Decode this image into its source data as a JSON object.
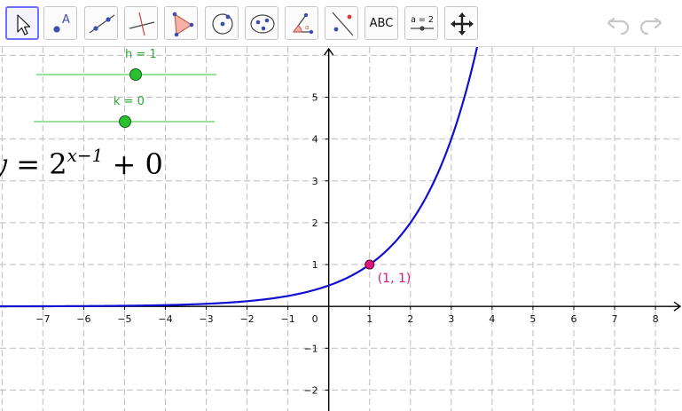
{
  "toolbar": {
    "tools": [
      {
        "name": "move-tool",
        "active": true
      },
      {
        "name": "point-tool",
        "label": "A"
      },
      {
        "name": "line-tool"
      },
      {
        "name": "perpendicular-line-tool"
      },
      {
        "name": "polygon-tool"
      },
      {
        "name": "circle-center-point-tool"
      },
      {
        "name": "conic-tool"
      },
      {
        "name": "angle-tool"
      },
      {
        "name": "reflect-tool"
      },
      {
        "name": "text-tool",
        "label": "ABC"
      },
      {
        "name": "slider-tool",
        "label": "a = 2"
      },
      {
        "name": "move-graphics-view-tool"
      }
    ],
    "undo_icon": "undo-icon",
    "redo_icon": "redo-icon"
  },
  "sliders": [
    {
      "name": "h",
      "label": "h = 1",
      "value": 1
    },
    {
      "name": "k",
      "label": "k = 0",
      "value": 0
    }
  ],
  "equation": {
    "lhs": "y",
    "equals": "=",
    "base": "2",
    "exponent": "x−1",
    "rest": "+ 0"
  },
  "point": {
    "label": "(1, 1)",
    "x": 1,
    "y": 1,
    "color": "#e0147a"
  },
  "chart_data": {
    "type": "line",
    "function": "y = 2^(x-1) + 0",
    "xlim": [
      -8.05,
      8.65
    ],
    "ylim": [
      -2.5,
      6.2
    ],
    "grid": true,
    "x_ticks": [
      -7,
      -6,
      -5,
      -4,
      -3,
      -2,
      -1,
      1,
      2,
      3,
      4,
      5,
      6,
      7,
      8
    ],
    "y_ticks": [
      -2,
      -1,
      1,
      2,
      3,
      4,
      5
    ],
    "origin_label": "0",
    "series": [
      {
        "curve_color": "#1010d0"
      }
    ]
  },
  "colors": {
    "curve": "#1010d0",
    "grid": "#bdbdbd",
    "axis": "#000000",
    "slider_label": "#2aa832",
    "point": "#e0147a"
  }
}
